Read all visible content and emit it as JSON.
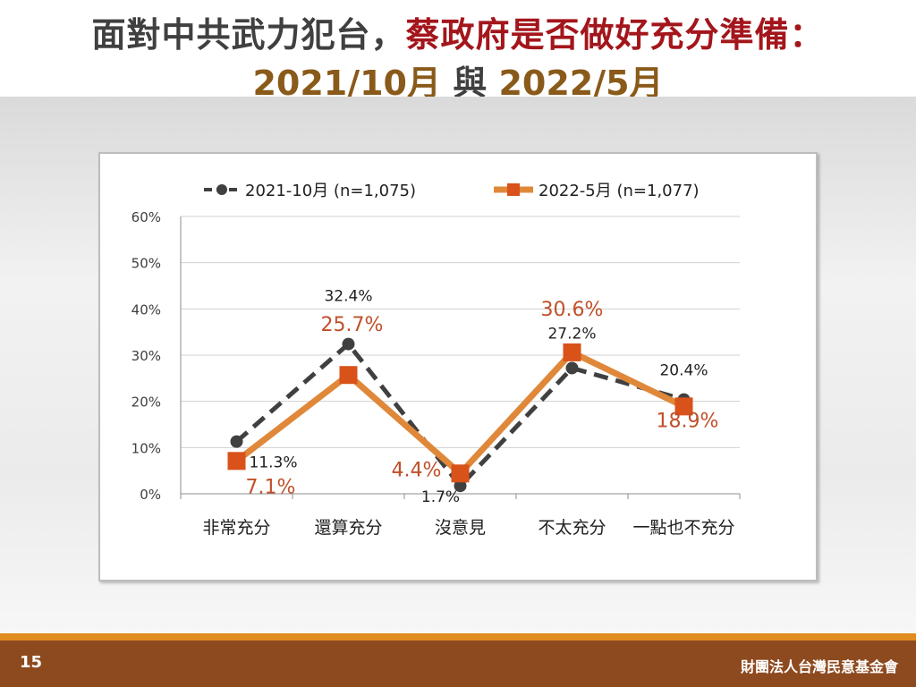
{
  "title": {
    "line1_prefix": "面對中共武力犯台，",
    "line1_highlight": "蔡政府是否做好充分準備：",
    "line2_date1": "2021/10月",
    "line2_connector": " 與 ",
    "line2_date2": "2022/5月"
  },
  "footer": {
    "page_number": "15",
    "organization": "財團法人台灣民意基金會"
  },
  "colors": {
    "series1": "#404040",
    "series2": "#e0883a",
    "series2_marker": "#d8521a",
    "series2_label": "#c0502a",
    "title_red": "#a3161c",
    "title_gold": "#8a5a1a",
    "footer_bg": "#8e4a1f",
    "footer_stripe": "#e08c1e"
  },
  "chart_data": {
    "type": "line",
    "categories": [
      "非常充分",
      "還算充分",
      "沒意見",
      "不太充分",
      "一點也不充分"
    ],
    "series": [
      {
        "name": "2021-10月  (n=1,075)",
        "values": [
          11.3,
          32.4,
          1.7,
          27.2,
          20.4
        ],
        "labels": [
          "11.3%",
          "32.4%",
          "1.7%",
          "27.2%",
          "20.4%"
        ],
        "style": "dashed",
        "marker": "circle"
      },
      {
        "name": "2022-5月  (n=1,077)",
        "values": [
          7.1,
          25.7,
          4.4,
          30.6,
          18.9
        ],
        "labels": [
          "7.1%",
          "25.7%",
          "4.4%",
          "30.6%",
          "18.9%"
        ],
        "style": "solid",
        "marker": "square"
      }
    ],
    "y_ticks": [
      "0%",
      "10%",
      "20%",
      "30%",
      "40%",
      "50%",
      "60%"
    ],
    "ylim": [
      0,
      60
    ],
    "grid": true,
    "legend_position": "top"
  }
}
